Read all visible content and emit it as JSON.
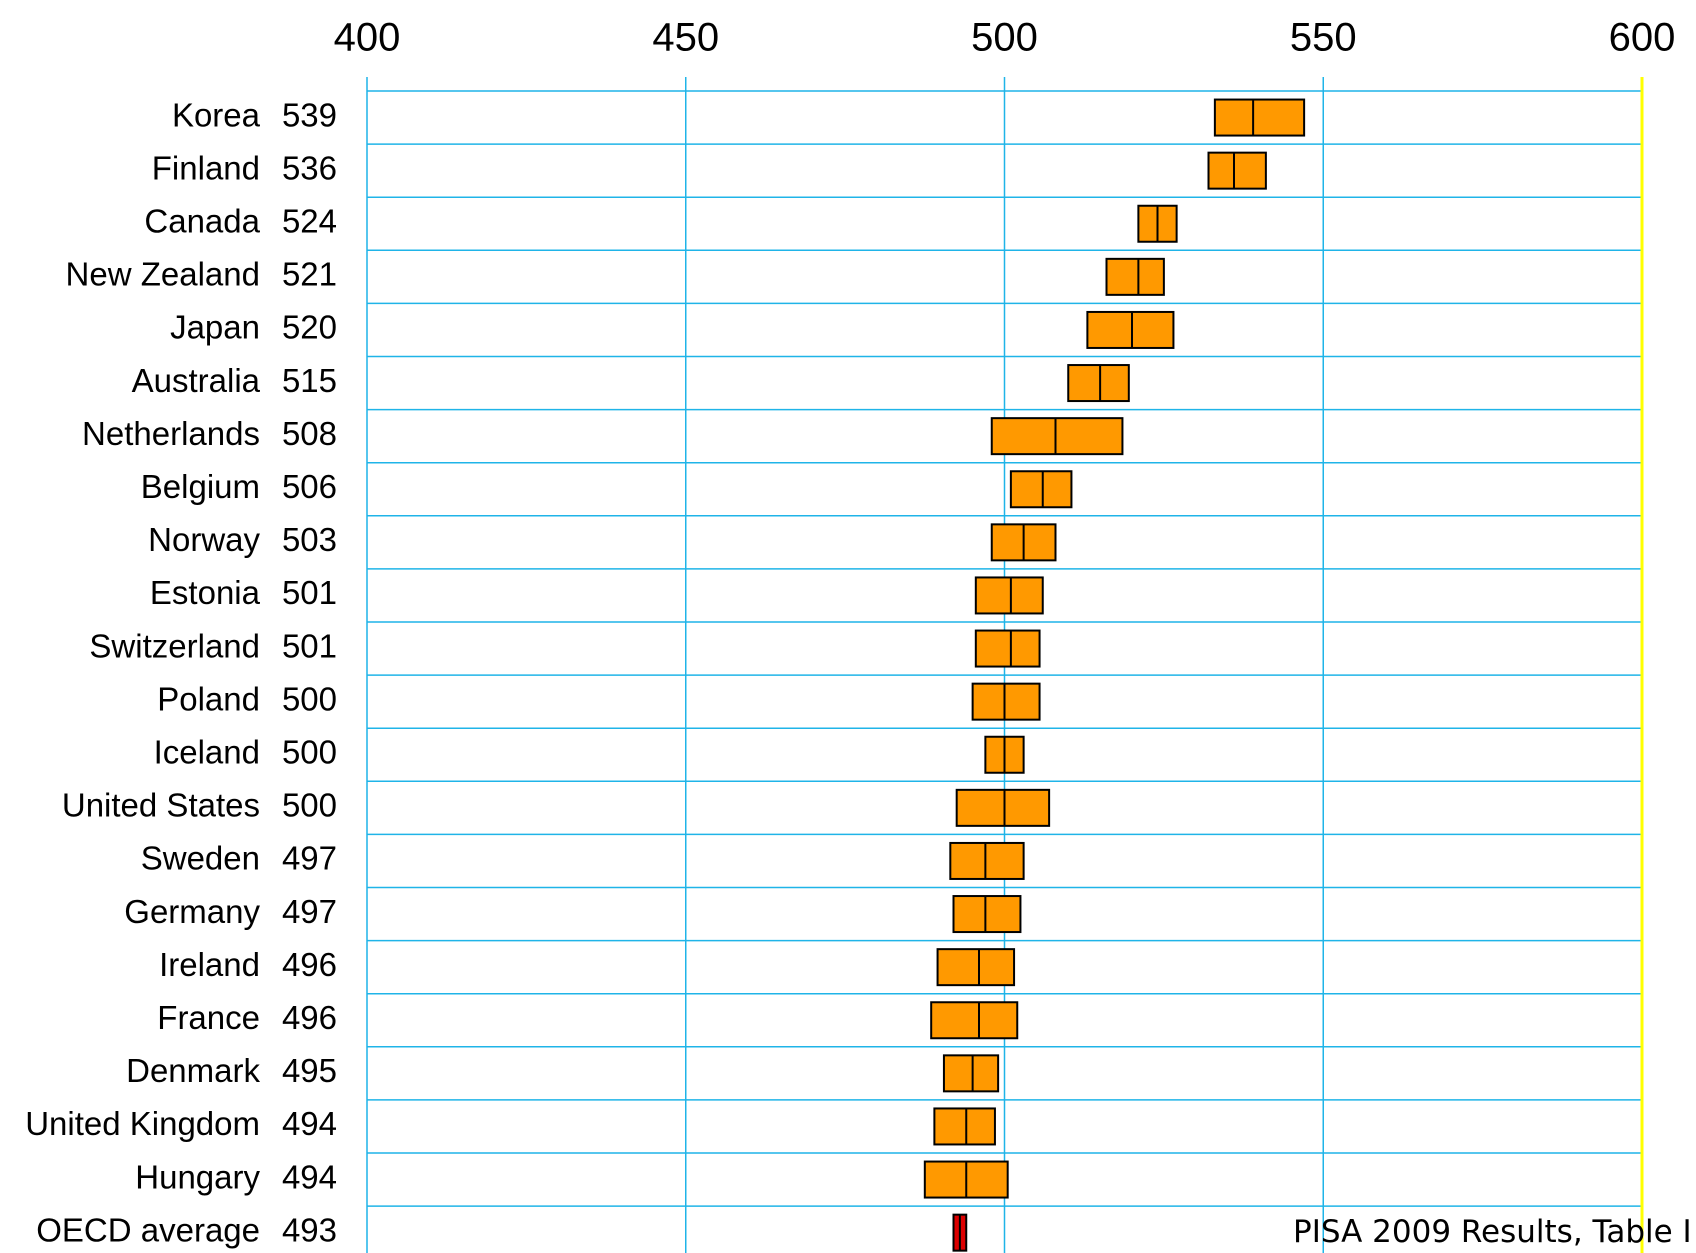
{
  "chart_data": {
    "type": "bar",
    "title": "",
    "xlabel": "",
    "ylabel": "",
    "xlim": [
      400,
      600
    ],
    "x_ticks": [
      400,
      450,
      500,
      550,
      600
    ],
    "grid": true,
    "colors": {
      "grid": "#1fb4e8",
      "box_fill": "#ff9900",
      "box_stroke": "#000000",
      "average_fill": "#dd0000",
      "right_edge": "#ffff00"
    },
    "rows": [
      {
        "country": "Korea",
        "score": 539,
        "low": 533,
        "high": 547
      },
      {
        "country": "Finland",
        "score": 536,
        "low": 532,
        "high": 541
      },
      {
        "country": "Canada",
        "score": 524,
        "low": 521,
        "high": 527
      },
      {
        "country": "New Zealand",
        "score": 521,
        "low": 516,
        "high": 525
      },
      {
        "country": "Japan",
        "score": 520,
        "low": 513,
        "high": 526.5
      },
      {
        "country": "Australia",
        "score": 515,
        "low": 510,
        "high": 519.5
      },
      {
        "country": "Netherlands",
        "score": 508,
        "low": 498,
        "high": 518.5
      },
      {
        "country": "Belgium",
        "score": 506,
        "low": 501,
        "high": 510.5
      },
      {
        "country": "Norway",
        "score": 503,
        "low": 498,
        "high": 508
      },
      {
        "country": "Estonia",
        "score": 501,
        "low": 495.5,
        "high": 506
      },
      {
        "country": "Switzerland",
        "score": 501,
        "low": 495.5,
        "high": 505.5
      },
      {
        "country": "Poland",
        "score": 500,
        "low": 495,
        "high": 505.5
      },
      {
        "country": "Iceland",
        "score": 500,
        "low": 497,
        "high": 503
      },
      {
        "country": "United States",
        "score": 500,
        "low": 492.5,
        "high": 507
      },
      {
        "country": "Sweden",
        "score": 497,
        "low": 491.5,
        "high": 503
      },
      {
        "country": "Germany",
        "score": 497,
        "low": 492,
        "high": 502.5
      },
      {
        "country": "Ireland",
        "score": 496,
        "low": 489.5,
        "high": 501.5
      },
      {
        "country": "France",
        "score": 496,
        "low": 488.5,
        "high": 502
      },
      {
        "country": "Denmark",
        "score": 495,
        "low": 490.5,
        "high": 499
      },
      {
        "country": "United Kingdom",
        "score": 494,
        "low": 489,
        "high": 498.5
      },
      {
        "country": "Hungary",
        "score": 494,
        "low": 487.5,
        "high": 500.5
      },
      {
        "country": "OECD average",
        "score": 493,
        "low": 492,
        "high": 494,
        "highlight": true
      }
    ]
  },
  "source_note": "PISA 2009 Results, Table I"
}
